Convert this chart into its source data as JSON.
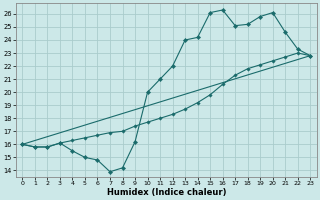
{
  "xlabel": "Humidex (Indice chaleur)",
  "xlim": [
    -0.5,
    23.5
  ],
  "ylim": [
    13.5,
    26.8
  ],
  "yticks": [
    14,
    15,
    16,
    17,
    18,
    19,
    20,
    21,
    22,
    23,
    24,
    25,
    26
  ],
  "xticks": [
    0,
    1,
    2,
    3,
    4,
    5,
    6,
    7,
    8,
    9,
    10,
    11,
    12,
    13,
    14,
    15,
    16,
    17,
    18,
    19,
    20,
    21,
    22,
    23
  ],
  "bg_color": "#cce8e8",
  "grid_color": "#aacccc",
  "line_color": "#1a6b6b",
  "line1_x": [
    0,
    1,
    2,
    3,
    4,
    5,
    6,
    7,
    8,
    9,
    10,
    11,
    12,
    13,
    14,
    15,
    16,
    17,
    18,
    19,
    20,
    21,
    22,
    23
  ],
  "line1_y": [
    16.0,
    15.8,
    15.8,
    16.1,
    15.5,
    15.0,
    14.8,
    13.9,
    14.2,
    16.2,
    20.0,
    21.0,
    22.0,
    24.0,
    24.2,
    26.1,
    26.3,
    25.1,
    25.2,
    25.8,
    26.1,
    24.6,
    23.3,
    22.8
  ],
  "line2_x": [
    0,
    23
  ],
  "line2_y": [
    16.0,
    22.8
  ],
  "line3_x": [
    0,
    1,
    2,
    3,
    4,
    5,
    6,
    7,
    8,
    9,
    10,
    11,
    12,
    13,
    14,
    15,
    16,
    17,
    18,
    19,
    20,
    21,
    22,
    23
  ],
  "line3_y": [
    16.0,
    15.8,
    15.8,
    16.1,
    16.3,
    16.5,
    16.7,
    16.9,
    17.0,
    17.4,
    17.7,
    18.0,
    18.3,
    18.7,
    19.2,
    19.8,
    20.6,
    21.3,
    21.8,
    22.1,
    22.4,
    22.7,
    23.0,
    22.8
  ]
}
